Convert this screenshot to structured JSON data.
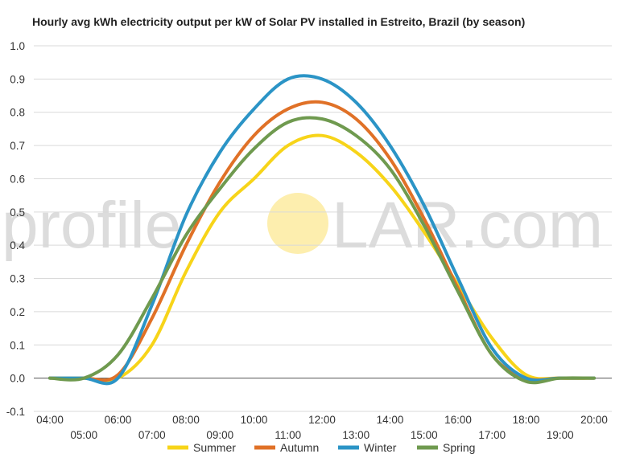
{
  "chart_data": {
    "type": "line",
    "title": "Hourly avg kWh electricity output per kW of Solar PV installed in Estreito, Brazil (by season)",
    "xlabel": "",
    "ylabel": "",
    "ylim": [
      -0.1,
      1.0
    ],
    "yticks": [
      "-0.1",
      "0.0",
      "0.1",
      "0.2",
      "0.3",
      "0.4",
      "0.5",
      "0.6",
      "0.7",
      "0.8",
      "0.9",
      "1.0"
    ],
    "ytick_values": [
      -0.1,
      0.0,
      0.1,
      0.2,
      0.3,
      0.4,
      0.5,
      0.6,
      0.7,
      0.8,
      0.9,
      1.0
    ],
    "categories": [
      "04:00",
      "05:00",
      "06:00",
      "07:00",
      "08:00",
      "09:00",
      "10:00",
      "11:00",
      "12:00",
      "13:00",
      "14:00",
      "15:00",
      "16:00",
      "17:00",
      "18:00",
      "19:00",
      "20:00"
    ],
    "grid": true,
    "legend_position": "bottom",
    "series": [
      {
        "name": "Summer",
        "color": "#f7d419",
        "values": [
          0.0,
          0.0,
          0.0,
          0.1,
          0.32,
          0.5,
          0.6,
          0.7,
          0.73,
          0.68,
          0.58,
          0.44,
          0.28,
          0.12,
          0.01,
          0.0,
          0.0
        ]
      },
      {
        "name": "Autumn",
        "color": "#e07127",
        "values": [
          0.0,
          0.0,
          0.01,
          0.18,
          0.4,
          0.59,
          0.73,
          0.81,
          0.83,
          0.78,
          0.66,
          0.48,
          0.27,
          0.07,
          0.0,
          0.0,
          0.0
        ]
      },
      {
        "name": "Winter",
        "color": "#2b94c6",
        "values": [
          0.0,
          0.0,
          0.0,
          0.22,
          0.49,
          0.68,
          0.81,
          0.9,
          0.9,
          0.83,
          0.7,
          0.52,
          0.3,
          0.09,
          0.0,
          0.0,
          0.0
        ]
      },
      {
        "name": "Spring",
        "color": "#6f9a4f",
        "values": [
          0.0,
          0.0,
          0.07,
          0.24,
          0.43,
          0.57,
          0.69,
          0.77,
          0.78,
          0.73,
          0.63,
          0.46,
          0.26,
          0.07,
          -0.01,
          0.0,
          0.0
        ]
      }
    ]
  },
  "watermark": {
    "left": "profile",
    "right": "LAR.com",
    "sun_color": "#fdeba0"
  }
}
